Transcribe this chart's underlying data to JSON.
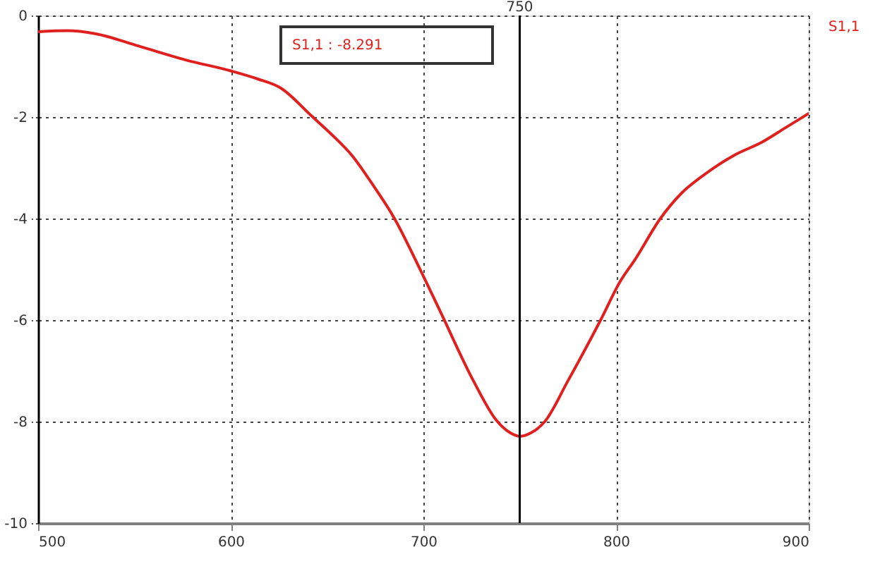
{
  "chart_data": {
    "type": "line",
    "x": [
      500,
      515,
      530,
      552,
      577,
      600,
      614,
      626,
      642,
      652,
      663,
      674,
      685,
      697,
      709,
      726,
      738,
      745,
      750,
      756,
      763,
      775,
      792,
      802,
      810,
      823,
      834,
      846,
      861,
      876,
      888,
      900
    ],
    "series": [
      {
        "name": "S1,1",
        "color": "#e0201e",
        "values": [
          -0.32,
          -0.3,
          -0.36,
          -0.6,
          -0.88,
          -1.09,
          -1.25,
          -1.43,
          -1.98,
          -2.33,
          -2.76,
          -3.35,
          -4.0,
          -4.9,
          -5.85,
          -7.2,
          -7.98,
          -8.22,
          -8.291,
          -8.22,
          -8.0,
          -7.2,
          -6.0,
          -5.25,
          -4.8,
          -4.0,
          -3.5,
          -3.13,
          -2.76,
          -2.49,
          -2.21,
          -1.93
        ]
      }
    ],
    "xlim": [
      500,
      900
    ],
    "ylim": [
      -10,
      0
    ],
    "xticks": [
      500,
      600,
      700,
      800,
      900
    ],
    "yticks": [
      -10,
      -8,
      -6,
      -4,
      -2,
      0
    ],
    "grid": true,
    "legend": "top right",
    "line_style": "solid",
    "ref_lines": [
      {
        "axis": "x",
        "value": 750,
        "label": "750",
        "color": "#000000"
      }
    ],
    "annotations": [
      "S1,1 : -8.291"
    ]
  }
}
